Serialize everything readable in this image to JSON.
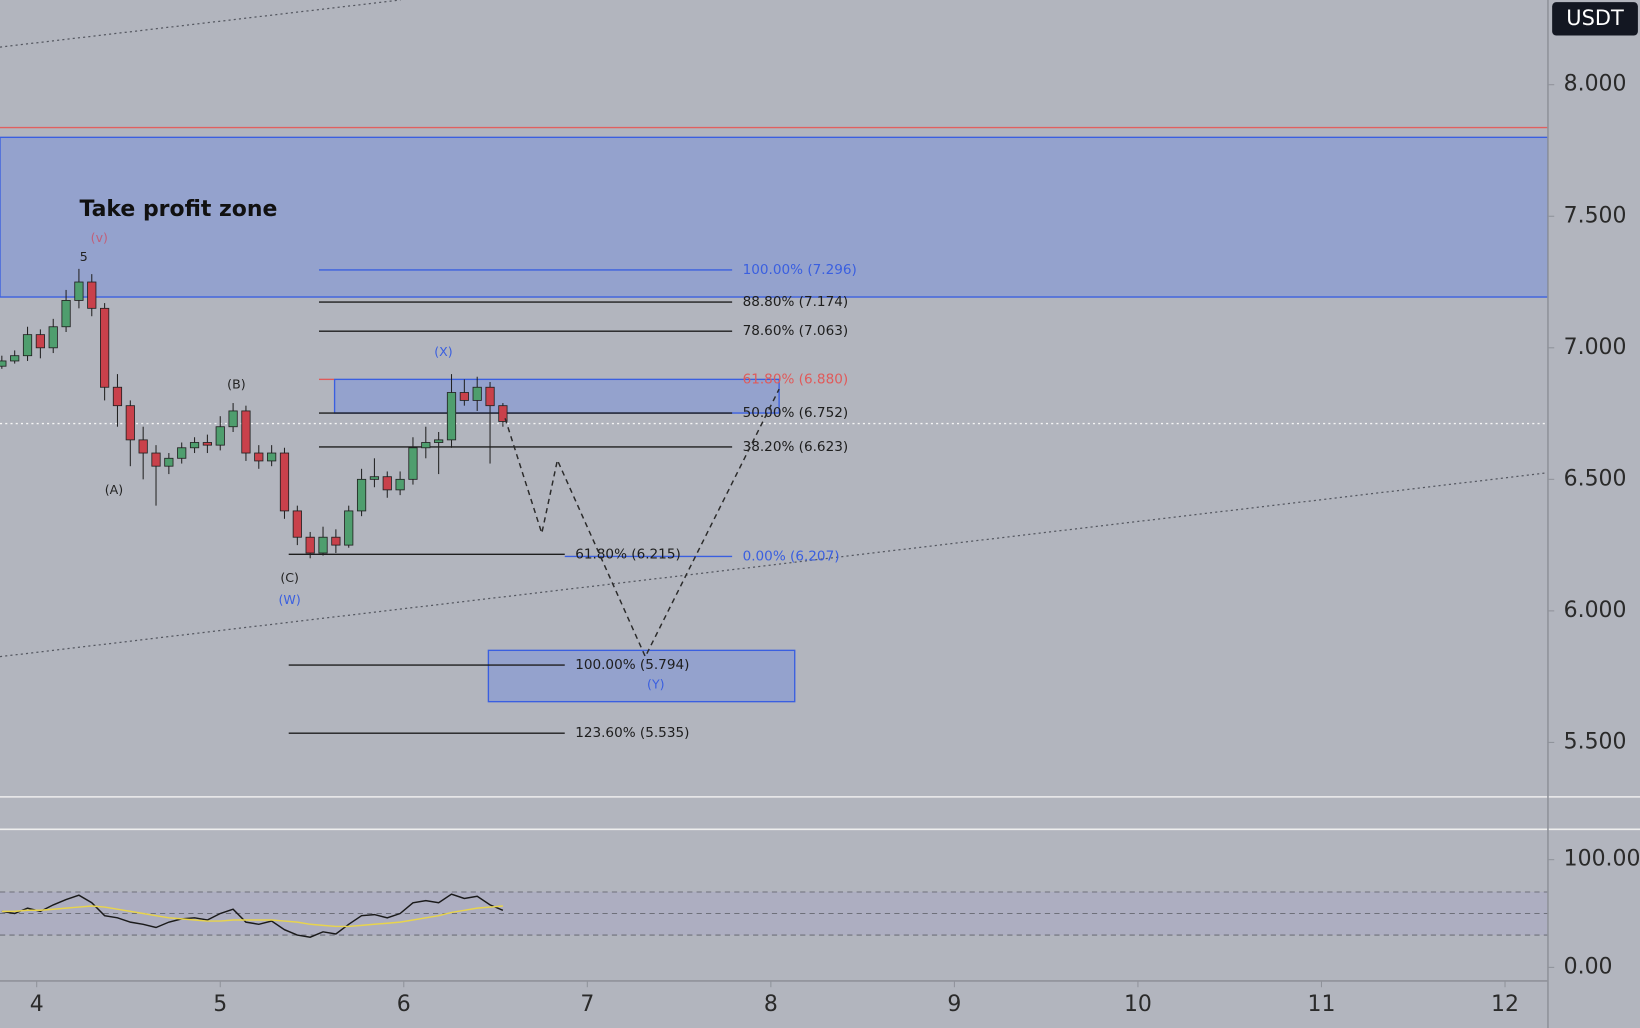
{
  "chart_data": [
    {
      "type": "candlestick",
      "currency_label": "USDT",
      "x": [
        3.81,
        3.88,
        3.95,
        4.02,
        4.09,
        4.16,
        4.23,
        4.3,
        4.37,
        4.44,
        4.51,
        4.58,
        4.65,
        4.72,
        4.79,
        4.86,
        4.93,
        5.0,
        5.07,
        5.14,
        5.21,
        5.28,
        5.35,
        5.42,
        5.49,
        5.56,
        5.63,
        5.7,
        5.77,
        5.84,
        5.91,
        5.98,
        6.05,
        6.12,
        6.19,
        6.26,
        6.33,
        6.4,
        6.47,
        6.54
      ],
      "open": [
        6.93,
        6.95,
        6.97,
        7.05,
        7.0,
        7.08,
        7.18,
        7.25,
        7.15,
        6.85,
        6.78,
        6.65,
        6.6,
        6.55,
        6.58,
        6.62,
        6.64,
        6.63,
        6.7,
        6.76,
        6.6,
        6.57,
        6.6,
        6.38,
        6.28,
        6.22,
        6.28,
        6.25,
        6.38,
        6.5,
        6.51,
        6.46,
        6.5,
        6.62,
        6.64,
        6.65,
        6.83,
        6.8,
        6.85,
        6.78
      ],
      "high": [
        6.97,
        6.99,
        7.08,
        7.07,
        7.11,
        7.22,
        7.3,
        7.28,
        7.17,
        6.9,
        6.8,
        6.7,
        6.63,
        6.6,
        6.64,
        6.66,
        6.67,
        6.74,
        6.79,
        6.78,
        6.63,
        6.63,
        6.62,
        6.4,
        6.3,
        6.32,
        6.31,
        6.4,
        6.54,
        6.58,
        6.53,
        6.53,
        6.66,
        6.7,
        6.68,
        6.9,
        6.88,
        6.89,
        6.87,
        6.79
      ],
      "low": [
        6.92,
        6.94,
        6.95,
        6.96,
        6.98,
        7.06,
        7.15,
        7.12,
        6.8,
        6.7,
        6.55,
        6.5,
        6.4,
        6.52,
        6.56,
        6.6,
        6.6,
        6.61,
        6.68,
        6.57,
        6.54,
        6.55,
        6.35,
        6.25,
        6.2,
        6.21,
        6.22,
        6.24,
        6.36,
        6.47,
        6.43,
        6.44,
        6.48,
        6.58,
        6.52,
        6.62,
        6.78,
        6.76,
        6.56,
        6.7
      ],
      "close": [
        6.95,
        6.97,
        7.05,
        7.0,
        7.08,
        7.18,
        7.25,
        7.15,
        6.85,
        6.78,
        6.65,
        6.6,
        6.55,
        6.58,
        6.62,
        6.64,
        6.63,
        6.7,
        6.76,
        6.6,
        6.57,
        6.6,
        6.38,
        6.28,
        6.22,
        6.28,
        6.25,
        6.38,
        6.5,
        6.51,
        6.46,
        6.5,
        6.62,
        6.64,
        6.65,
        6.83,
        6.8,
        6.85,
        6.78,
        6.72
      ],
      "up_color": "#4f9e6e",
      "down_color": "#c9414b",
      "xlim": [
        3.8,
        12.234
      ],
      "xticks": [
        4,
        5,
        6,
        7,
        8,
        9,
        10,
        11,
        12
      ],
      "ylim": [
        5.293,
        8.322
      ],
      "yticks": [
        {
          "value": 8,
          "label": "8.000"
        },
        {
          "value": 7.5,
          "label": "7.500"
        },
        {
          "value": 7,
          "label": "7.000"
        },
        {
          "value": 6.5,
          "label": "6.500"
        },
        {
          "value": 6,
          "label": "6.000"
        },
        {
          "value": 5.5,
          "label": "5.500"
        }
      ],
      "grid": false,
      "zones": [
        {
          "x": [
            3.8,
            12.234
          ],
          "y": [
            7.193,
            7.8
          ],
          "color": "#94a2cd",
          "edge": "#3a5fe0"
        },
        {
          "x": [
            5.623,
            8.045
          ],
          "y": [
            6.752,
            6.88
          ],
          "color": "#94a2cd",
          "edge": "#3a5fe0"
        },
        {
          "x": [
            6.461,
            8.13
          ],
          "y": [
            5.655,
            5.85
          ],
          "color": "#94a2cd",
          "edge": "#3a5fe0"
        }
      ],
      "hlines": [
        {
          "value": 7.837,
          "color": "#e06060",
          "style": "solid"
        },
        {
          "value": 6.712,
          "color": "#f4f4f4",
          "style": "dotted"
        }
      ],
      "trendlines": [
        {
          "x": [
            3.8,
            5.982
          ],
          "y": [
            8.143,
            8.322
          ]
        },
        {
          "x": [
            3.8,
            12.234
          ],
          "y": [
            5.826,
            6.525
          ]
        }
      ],
      "fib": [
        {
          "x": [
            5.538,
            7.789
          ],
          "levels": [
            {
              "label": "100.00% (7.296)",
              "value": 7.296,
              "color": "#3a5fe0"
            },
            {
              "label": "88.80% (7.174)",
              "value": 7.174,
              "color": "#1e1e1e"
            },
            {
              "label": "78.60% (7.063)",
              "value": 7.063,
              "color": "#1e1e1e"
            },
            {
              "label": "61.80% (6.880)",
              "value": 6.88,
              "color": "#e05a5a",
              "x": [
                5.538,
                5.62
              ]
            },
            {
              "label": "50.00% (6.752)",
              "value": 6.752,
              "color": "#1e1e1e"
            },
            {
              "label": "38.20% (6.623)",
              "value": 6.623,
              "color": "#1e1e1e"
            },
            {
              "label": "0.00% (6.207)",
              "value": 6.207,
              "color": "#3a5fe0",
              "x": [
                6.877,
                7.789
              ]
            }
          ]
        },
        {
          "x": [
            5.373,
            6.877
          ],
          "levels": [
            {
              "label": "61.80% (6.215)",
              "value": 6.215,
              "color": "#1e1e1e"
            },
            {
              "label": "100.00% (5.794)",
              "value": 5.794,
              "color": "#1e1e1e"
            },
            {
              "label": "123.60% (5.535)",
              "value": 5.535,
              "color": "#1e1e1e"
            }
          ]
        }
      ],
      "projection": {
        "x": [
          6.552,
          6.752,
          6.837,
          7.316,
          8.045
        ],
        "y": [
          6.732,
          6.295,
          6.573,
          5.826,
          6.843
        ]
      },
      "zone_title": {
        "label": "Take profit zone",
        "x": 4.233,
        "y": 7.523
      },
      "wave_labels": [
        {
          "label": "5",
          "x": 4.256,
          "y": 7.344,
          "color": "#222222"
        },
        {
          "label": "(v)",
          "x": 4.341,
          "y": 7.416,
          "color": "#c0607a"
        },
        {
          "label": "(A)",
          "x": 4.421,
          "y": 6.458,
          "color": "#222222"
        },
        {
          "label": "(B)",
          "x": 5.088,
          "y": 6.859,
          "color": "#222222"
        },
        {
          "label": "(C)",
          "x": 5.378,
          "y": 6.124,
          "color": "#222222"
        },
        {
          "label": "(W)",
          "x": 5.378,
          "y": 6.04,
          "color": "#3a5fe0"
        },
        {
          "label": "(X)",
          "x": 6.216,
          "y": 6.983,
          "color": "#3a5fe0"
        },
        {
          "label": "(Y)",
          "x": 7.373,
          "y": 5.719,
          "color": "#3a5fe0"
        }
      ]
    },
    {
      "type": "line",
      "x": [
        3.81,
        3.88,
        3.95,
        4.02,
        4.09,
        4.16,
        4.23,
        4.3,
        4.37,
        4.44,
        4.51,
        4.58,
        4.65,
        4.72,
        4.79,
        4.86,
        4.93,
        5.0,
        5.07,
        5.14,
        5.21,
        5.28,
        5.35,
        5.42,
        5.49,
        5.56,
        5.63,
        5.7,
        5.77,
        5.84,
        5.91,
        5.98,
        6.05,
        6.12,
        6.19,
        6.26,
        6.33,
        6.4,
        6.47,
        6.54
      ],
      "series": [
        {
          "color": "#1a1a1a",
          "values": [
            52,
            50,
            55,
            52,
            58,
            63,
            67,
            60,
            48,
            46,
            42,
            40,
            37,
            42,
            45,
            46,
            44,
            50,
            54,
            42,
            40,
            43,
            35,
            30,
            28,
            33,
            31,
            40,
            48,
            49,
            46,
            50,
            60,
            62,
            60,
            68,
            64,
            66,
            58,
            53
          ]
        },
        {
          "color": "#e8d44d",
          "values": [
            52,
            52,
            53,
            53,
            54,
            55,
            56,
            57,
            56,
            54,
            52,
            50,
            48,
            46,
            45,
            44,
            43,
            43,
            44,
            44,
            44,
            44,
            43,
            42,
            40,
            39,
            38,
            38,
            39,
            40,
            41,
            42,
            44,
            46,
            48,
            51,
            53,
            55,
            56,
            57
          ]
        }
      ],
      "xlim": [
        3.8,
        12.234
      ],
      "ylim": [
        -12.6,
        128.2
      ],
      "yticks": [
        {
          "value": 100,
          "label": "100.00"
        },
        {
          "value": 0,
          "label": "0.00"
        }
      ],
      "levels": [
        70,
        50,
        30
      ],
      "band_color": "#a9a7c2"
    }
  ]
}
